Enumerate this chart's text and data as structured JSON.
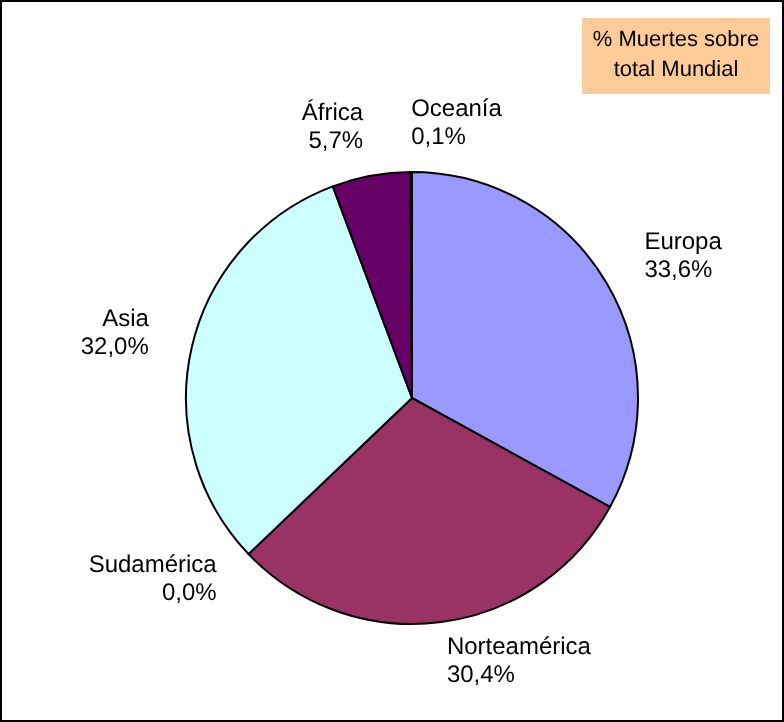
{
  "chart_data": {
    "type": "pie",
    "title": "% Muertes sobre total Mundial",
    "categories": [
      "Europa",
      "Norteamérica",
      "Sudamérica",
      "Asia",
      "África",
      "Oceanía"
    ],
    "values": [
      33.6,
      30.4,
      0.0,
      32.0,
      5.7,
      0.1
    ],
    "value_labels": [
      "33,6%",
      "30,4%",
      "0,0%",
      "32,0%",
      "5,7%",
      "0,1%"
    ],
    "colors": [
      "#9999ff",
      "#993366",
      "#ffffcc",
      "#ccffff",
      "#660066",
      "#ff8080"
    ]
  }
}
